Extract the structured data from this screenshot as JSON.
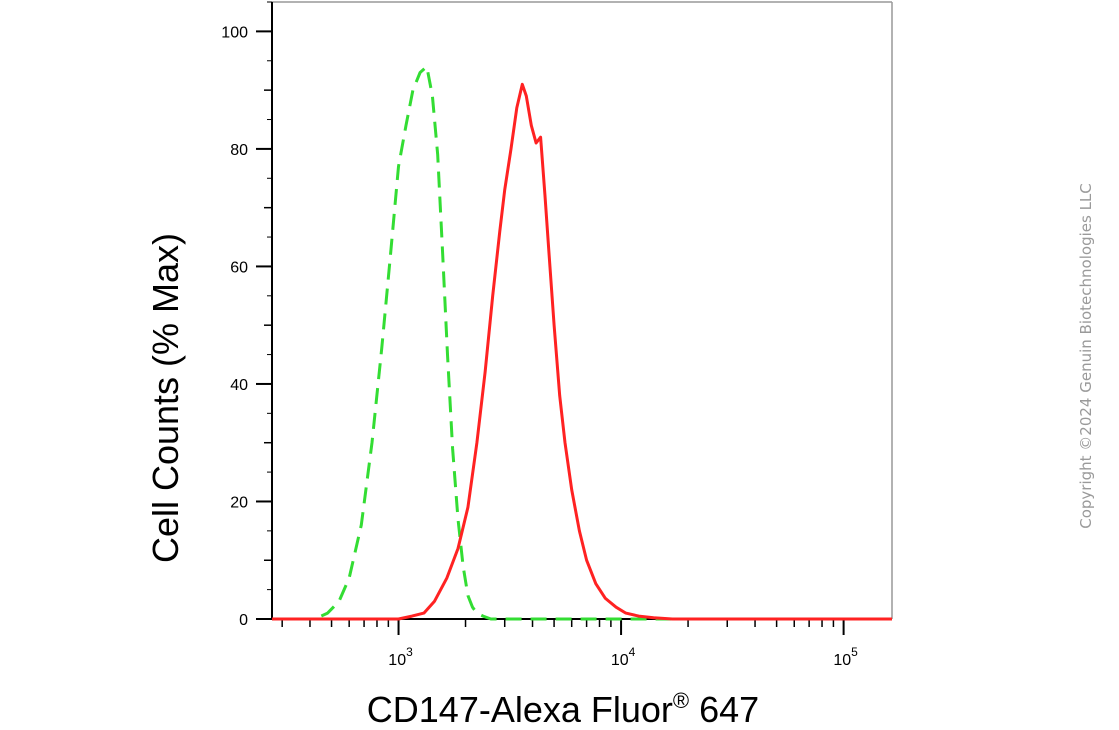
{
  "chart_data": {
    "type": "line",
    "xlabel": "CD147-Alexa Fluor",
    "xlabel_superscript": "®",
    "xlabel_suffix": " 647",
    "ylabel": "Cell Counts (% Max)",
    "x_scale": "log",
    "xlim": [
      270,
      165000
    ],
    "ylim": [
      0,
      105
    ],
    "y_ticks": [
      0,
      20,
      40,
      60,
      80,
      100
    ],
    "x_ticks": [
      {
        "value": 1000,
        "base": "10",
        "exp": "3"
      },
      {
        "value": 10000,
        "base": "10",
        "exp": "4"
      },
      {
        "value": 100000,
        "base": "10",
        "exp": "5"
      }
    ],
    "grid": false,
    "legend": "none",
    "series": [
      {
        "color": "#33dd33",
        "style": "dashed",
        "x": [
          270,
          420,
          480,
          540,
          600,
          680,
          760,
          840,
          920,
          1000,
          1080,
          1160,
          1250,
          1340,
          1420,
          1500,
          1580,
          1660,
          1750,
          1850,
          1950,
          2050,
          2150,
          2250,
          2400,
          2600,
          2900,
          3500,
          5000,
          10000,
          165000
        ],
        "y": [
          0,
          0,
          1,
          3,
          7,
          16,
          30,
          46,
          62,
          77,
          84,
          90,
          93,
          94,
          89,
          79,
          62,
          45,
          29,
          17,
          9,
          4,
          2,
          1,
          0.5,
          0,
          0,
          0,
          0,
          0,
          0
        ]
      },
      {
        "color": "#ff2222",
        "style": "solid",
        "x": [
          270,
          1000,
          1150,
          1300,
          1450,
          1650,
          1850,
          2050,
          2250,
          2450,
          2650,
          2850,
          3000,
          3200,
          3400,
          3600,
          3750,
          3950,
          4150,
          4350,
          4550,
          4750,
          5000,
          5300,
          5600,
          6000,
          6500,
          7000,
          7700,
          8500,
          9500,
          10500,
          12000,
          14000,
          17000,
          22000,
          165000
        ],
        "y": [
          0,
          0,
          0.5,
          1,
          3,
          7,
          12,
          19,
          30,
          42,
          55,
          66,
          73,
          80,
          87,
          91,
          89,
          84,
          81,
          82,
          72,
          62,
          50,
          38,
          30,
          22,
          15,
          10,
          6,
          3.5,
          2,
          1,
          0.5,
          0.2,
          0,
          0,
          0
        ]
      }
    ]
  },
  "watermark": "Copyright ©2024 Genuin Biotechnologies LLC"
}
